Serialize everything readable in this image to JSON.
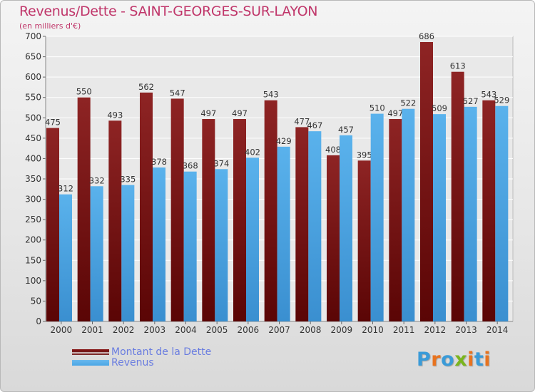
{
  "title": "Revenus/Dette - SAINT-GEORGES-SUR-LAYON",
  "subtitle": "(en milliers d'€)",
  "legend": [
    {
      "label": "Montant de la Dette",
      "color": "#6b0d0d"
    },
    {
      "label": "Revenus",
      "color": "#4aa6e6"
    }
  ],
  "logo": {
    "text": "Proxiti",
    "letters": [
      "P",
      "r",
      "o",
      "x",
      "i",
      "t",
      "i"
    ],
    "colors": [
      "#3a9bd8",
      "#e8731f",
      "#3a9bd8",
      "#7ab51d",
      "#e8731f",
      "#3a9bd8",
      "#e8731f"
    ]
  },
  "chart_data": {
    "type": "bar",
    "categories": [
      "2000",
      "2001",
      "2002",
      "2003",
      "2004",
      "2005",
      "2006",
      "2007",
      "2008",
      "2009",
      "2010",
      "2011",
      "2012",
      "2013",
      "2014"
    ],
    "series": [
      {
        "name": "Montant de la Dette",
        "color": "#6b0d0d",
        "values": [
          475,
          550,
          493,
          562,
          547,
          497,
          497,
          543,
          477,
          408,
          395,
          497,
          686,
          613,
          543
        ]
      },
      {
        "name": "Revenus",
        "color": "#4aa6e6",
        "values": [
          312,
          332,
          335,
          378,
          368,
          374,
          402,
          429,
          467,
          457,
          510,
          522,
          509,
          527,
          529
        ]
      }
    ],
    "yticks": [
      0,
      50,
      100,
      150,
      200,
      250,
      300,
      350,
      400,
      450,
      500,
      550,
      600,
      650,
      700
    ],
    "ylim": [
      0,
      700
    ],
    "grid": true,
    "data_labels": true,
    "legend_position": "bottom-left"
  }
}
